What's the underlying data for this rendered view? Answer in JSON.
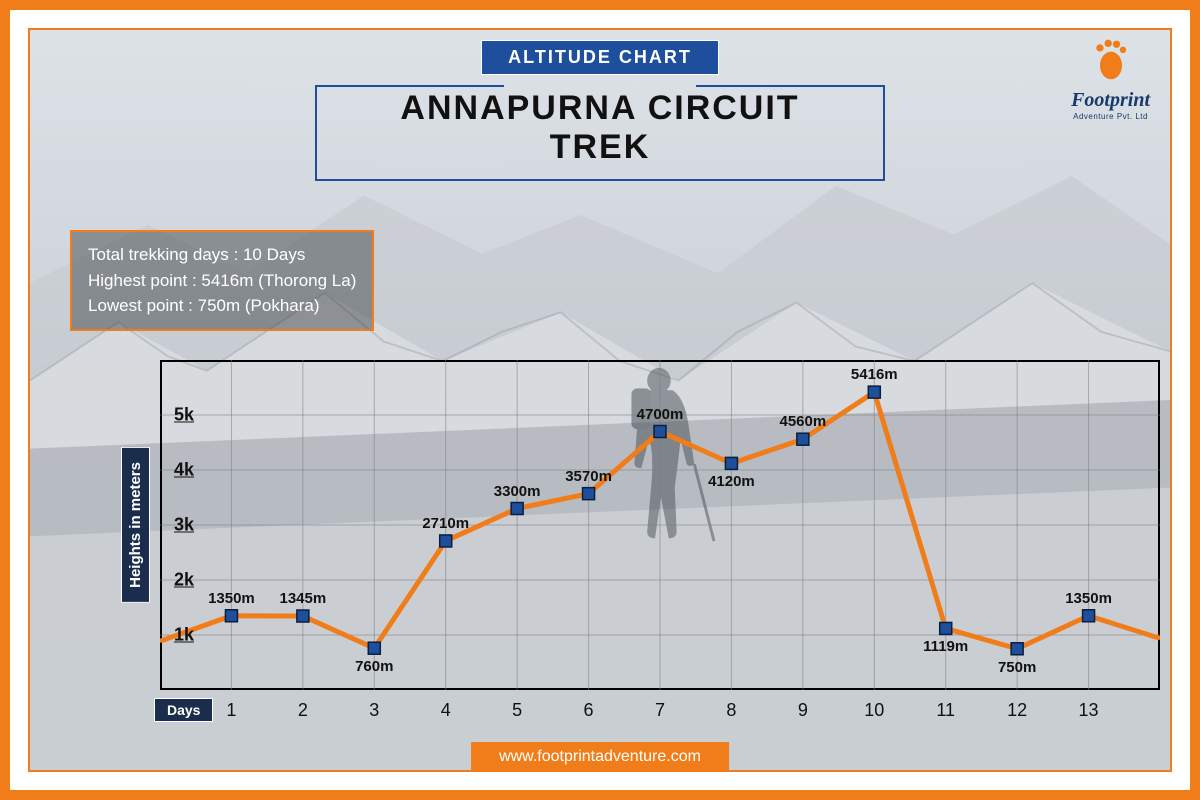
{
  "frame_color": "#f07d1a",
  "header": {
    "badge": "ALTITUDE CHART",
    "badge_bg": "#1e4f9c",
    "title": "ANNAPURNA CIRCUIT TREK"
  },
  "logo": {
    "brand": "Footprint",
    "sub": "Adventure Pvt. Ltd",
    "foot_color": "#f07d1a",
    "text_color": "#173a6b"
  },
  "info": {
    "line1": "Total trekking days : 10 Days",
    "line2": "Highest point : 5416m (Thorong La)",
    "line3": "Lowest point : 750m (Pokhara)"
  },
  "chart": {
    "type": "line",
    "line_color": "#f07d1a",
    "line_width": 5,
    "marker_color": "#1e4f9c",
    "marker_border": "#0b1e3d",
    "marker_size": 12,
    "border_color": "#000000",
    "border_width": 4,
    "grid_color": "rgba(120,125,130,0.55)",
    "ylabel": "Heights in meters",
    "xlabel": "Days",
    "ymin": 0,
    "ymax": 6000,
    "yticks": [
      1000,
      2000,
      3000,
      4000,
      5000
    ],
    "ytick_labels": [
      "1k",
      "2k",
      "3k",
      "4k",
      "5k"
    ],
    "days": [
      1,
      2,
      3,
      4,
      5,
      6,
      7,
      8,
      9,
      10,
      11,
      12,
      13
    ],
    "start_value": 900,
    "end_value": 950,
    "values": [
      1350,
      1345,
      760,
      2710,
      3300,
      3570,
      4700,
      4120,
      4560,
      5416,
      1119,
      750,
      1350
    ],
    "value_labels": [
      "1350m",
      "1345m",
      "760m",
      "2710m",
      "3300m",
      "3570m",
      "4700m",
      "4120m",
      "4560m",
      "5416m",
      "1119m",
      "750m",
      "1350m"
    ],
    "label_pos": [
      "above",
      "above",
      "below",
      "above",
      "above",
      "above",
      "above",
      "below",
      "above",
      "above",
      "below",
      "below",
      "above"
    ]
  },
  "footer": {
    "url": "www.footprintadventure.com"
  }
}
